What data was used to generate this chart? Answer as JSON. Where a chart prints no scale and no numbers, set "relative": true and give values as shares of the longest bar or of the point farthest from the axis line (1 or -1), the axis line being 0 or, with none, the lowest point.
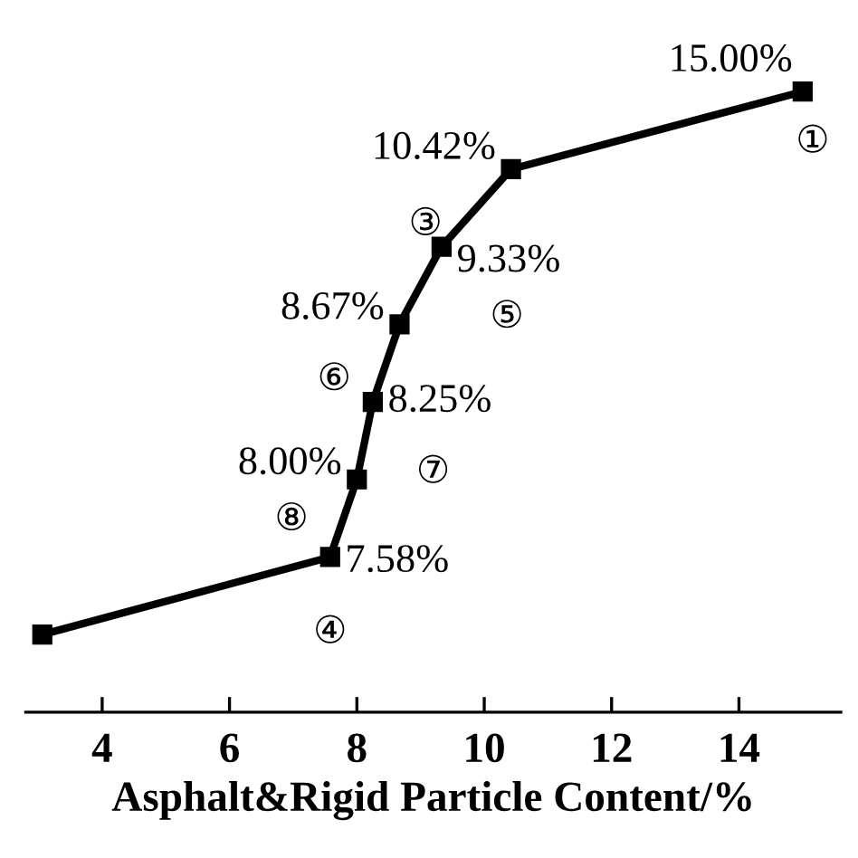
{
  "chart_data": {
    "type": "line",
    "relative": true,
    "xlabel": "Asphalt&Rigid Particle Content/%",
    "xlim": [
      2.8,
      15.6
    ],
    "xticks": [
      4,
      6,
      8,
      10,
      12,
      14
    ],
    "marker": "square",
    "line_style": "solid",
    "grid": false,
    "legend": false,
    "series": [
      {
        "color": "#000000",
        "x": [
          3.06,
          7.58,
          8.0,
          8.25,
          8.67,
          9.33,
          10.42,
          15.0
        ],
        "values": [
          0.125,
          0.25,
          0.375,
          0.5,
          0.625,
          0.75,
          0.875,
          1
        ]
      }
    ],
    "annotations": [
      {
        "text": "7.58%",
        "x": 7.58,
        "y": 0.25
      },
      {
        "text": "8.00%",
        "x": 8.0,
        "y": 0.375
      },
      {
        "text": "8.25%",
        "x": 8.25,
        "y": 0.5
      },
      {
        "text": "8.67%",
        "x": 8.67,
        "y": 0.625
      },
      {
        "text": "9.33%",
        "x": 9.33,
        "y": 0.75
      },
      {
        "text": "10.42%",
        "x": 10.42,
        "y": 0.875
      },
      {
        "text": "15.00%",
        "x": 15.0,
        "y": 1
      },
      {
        "text": "④",
        "x": 7.58,
        "y": 0.25
      },
      {
        "text": "⑧",
        "x": 8.0,
        "y": 0.375
      },
      {
        "text": "⑦",
        "x": 8.25,
        "y": 0.5
      },
      {
        "text": "⑥",
        "x": 8.67,
        "y": 0.625
      },
      {
        "text": "⑤",
        "x": 9.33,
        "y": 0.75
      },
      {
        "text": "③",
        "x": 10.42,
        "y": 0.875
      },
      {
        "text": "①",
        "x": 15.0,
        "y": 1
      }
    ]
  }
}
